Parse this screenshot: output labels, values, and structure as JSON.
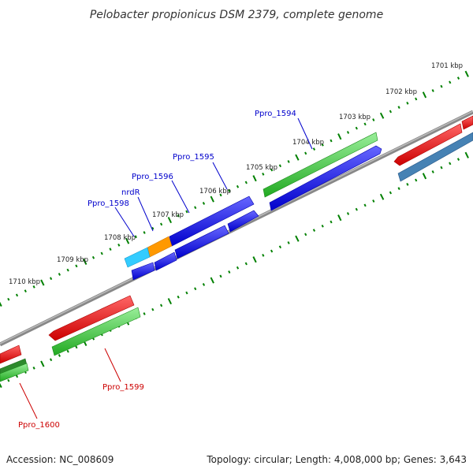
{
  "title": "Pelobacter propionicus DSM 2379, complete genome",
  "footer": {
    "accession": "Accession: NC_008609",
    "summary": "Topology: circular; Length: 4,008,000 bp; Genes: 3,643"
  },
  "ticks": [
    "1701 kbp",
    "1702 kbp",
    "1703 kbp",
    "1704 kbp",
    "1705 kbp",
    "1706 kbp",
    "1707 kbp",
    "1708 kbp",
    "1709 kbp",
    "1710 kbp"
  ],
  "gene_labels": [
    {
      "id": "Ppro_1594",
      "text": "Ppro_1594",
      "color": "#0000cc"
    },
    {
      "id": "Ppro_1595",
      "text": "Ppro_1595",
      "color": "#0000cc"
    },
    {
      "id": "Ppro_1596",
      "text": "Ppro_1596",
      "color": "#0000cc"
    },
    {
      "id": "nrdR",
      "text": "nrdR",
      "color": "#0000cc"
    },
    {
      "id": "Ppro_1598",
      "text": "Ppro_1598",
      "color": "#0000cc"
    },
    {
      "id": "Ppro_1599",
      "text": "Ppro_1599",
      "color": "#cc0000"
    },
    {
      "id": "Ppro_1600",
      "text": "Ppro_1600",
      "color": "#cc0000"
    }
  ],
  "colors": {
    "blue": "#0000ee",
    "green": "#33cc33",
    "red": "#ee0000",
    "steel": "#4682b4",
    "orange": "#ff9900",
    "cyan": "#33ccff",
    "dots": "#008000",
    "backbone": "#888888"
  }
}
